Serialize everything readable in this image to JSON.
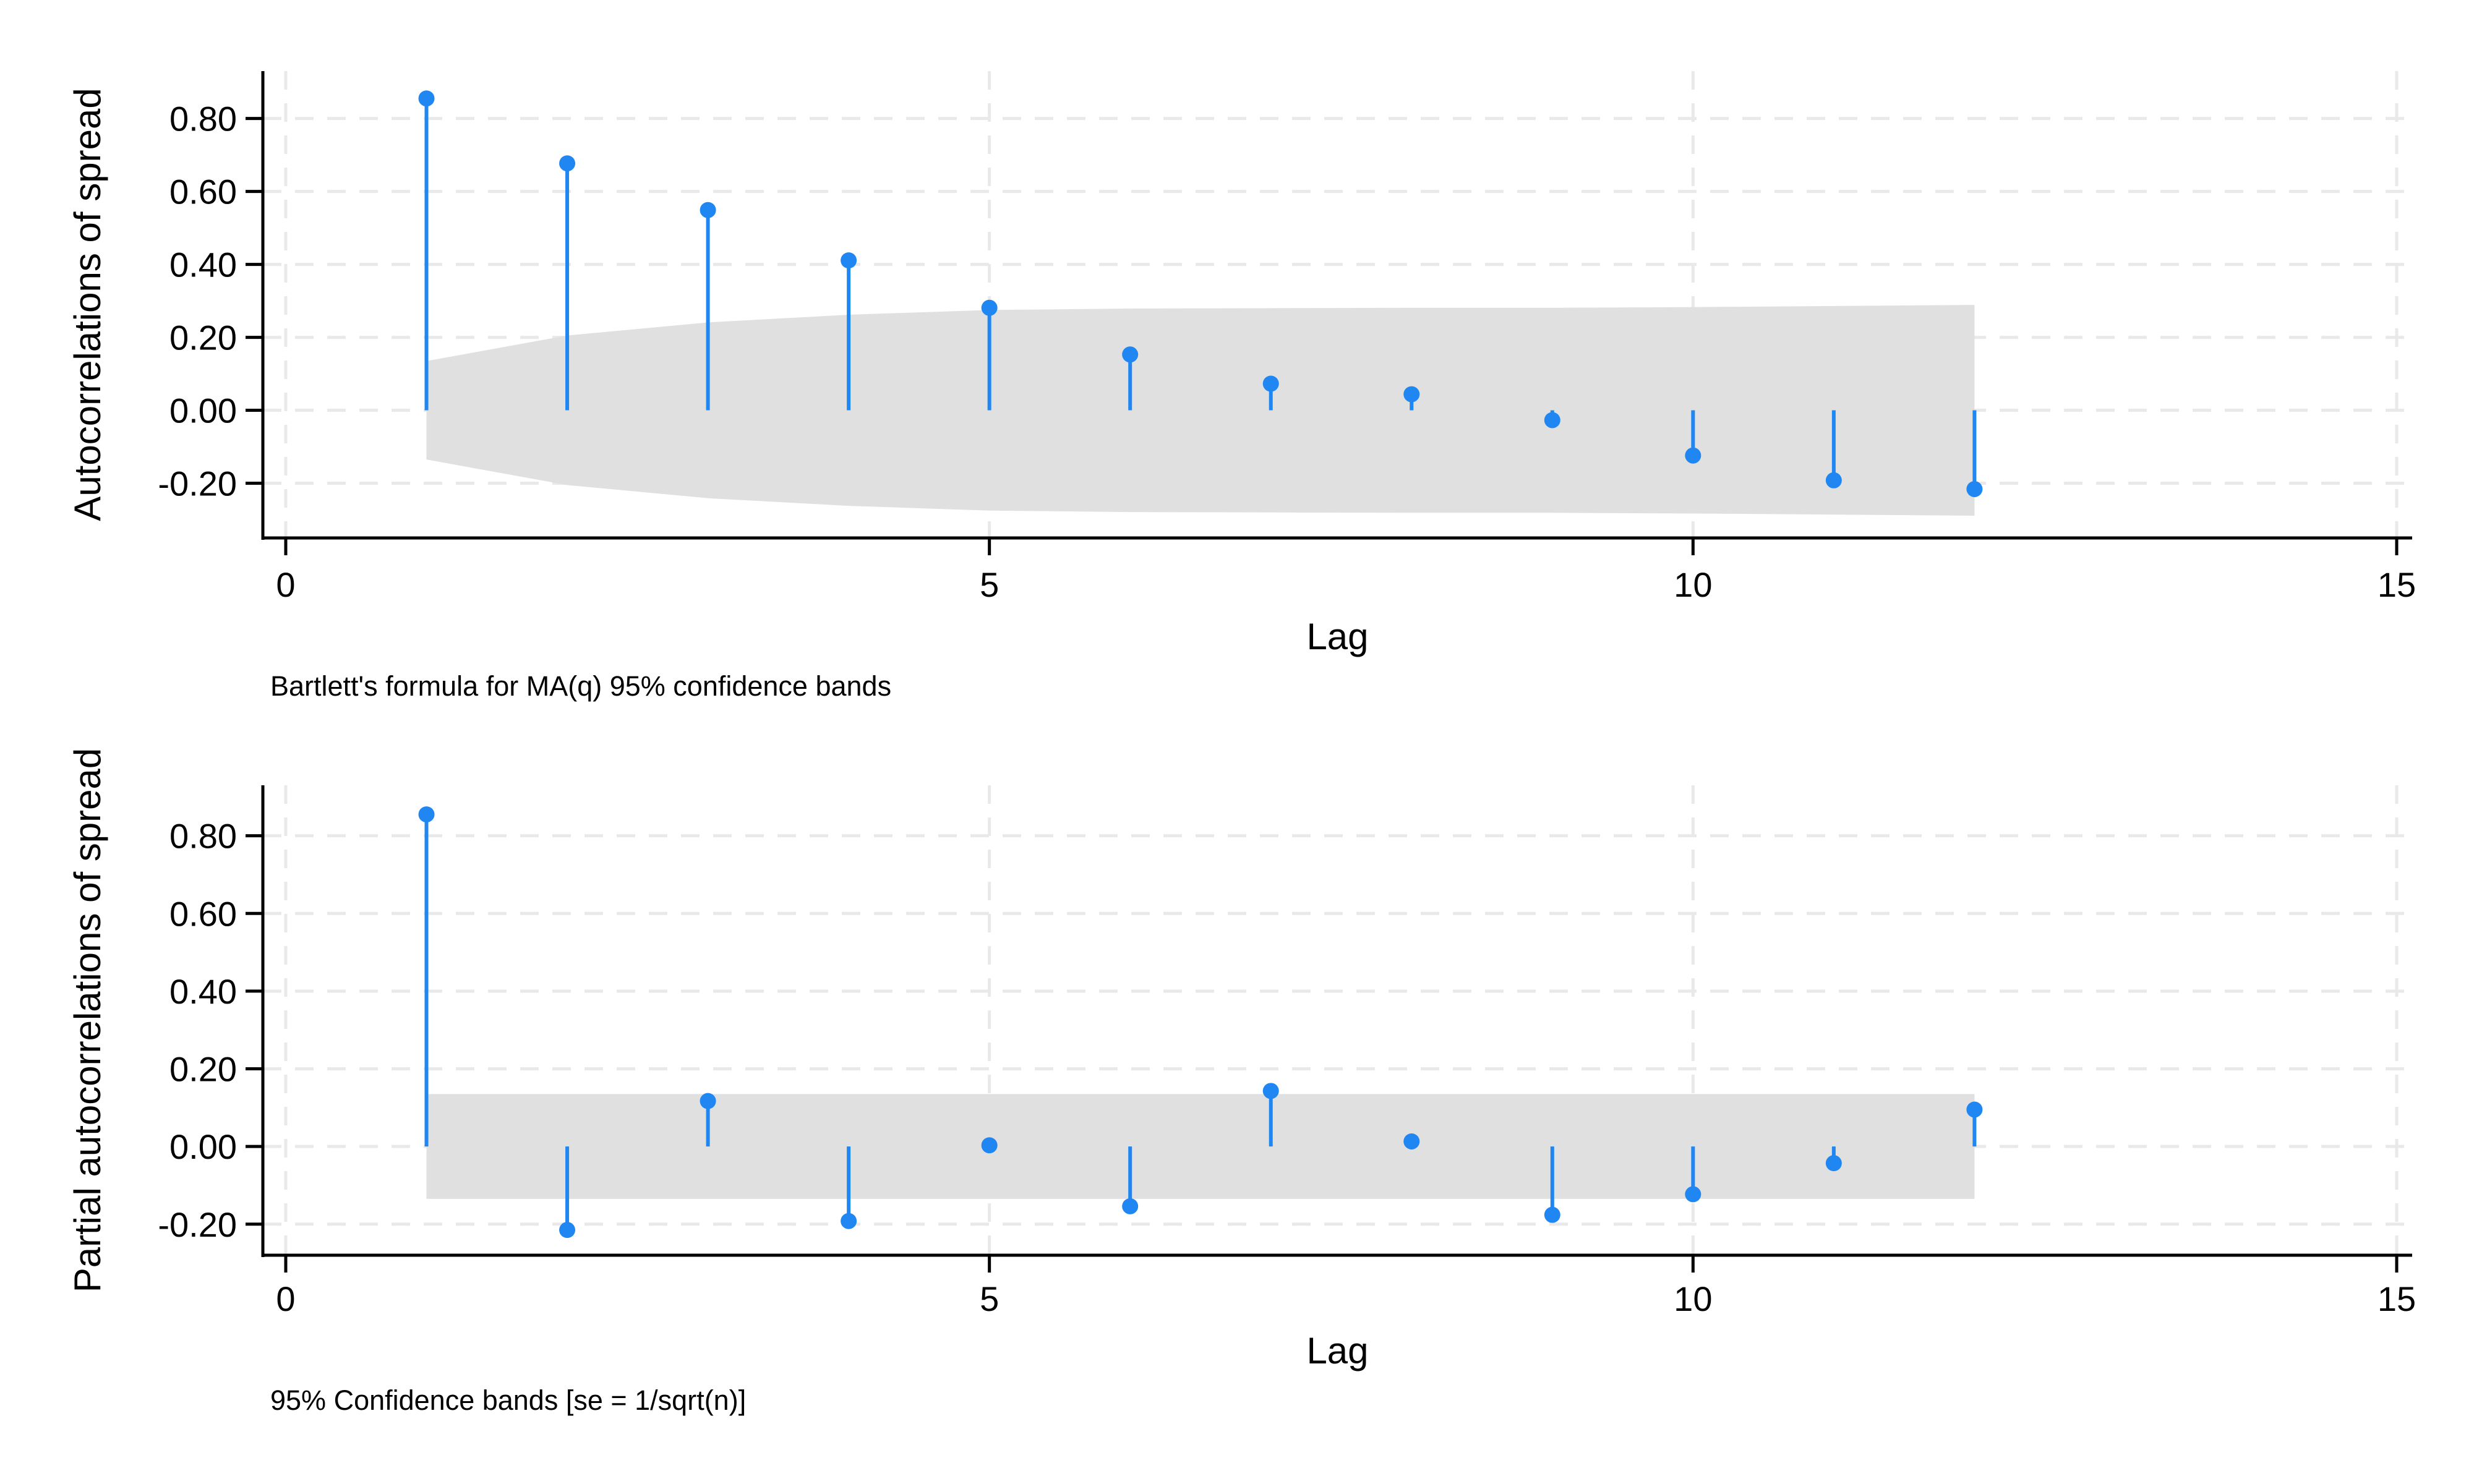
{
  "chart_data": [
    {
      "type": "stem",
      "ylabel": "Autocorrelations of spread",
      "xlabel": "Lag",
      "note": "Bartlett's formula for MA(q) 95% confidence bands",
      "xlim": [
        0,
        15
      ],
      "ylim": [
        -0.35,
        0.93
      ],
      "xticks": [
        0,
        5,
        10,
        15
      ],
      "xtick_labels": [
        "0",
        "5",
        "10",
        "15"
      ],
      "yticks": [
        -0.2,
        0.0,
        0.2,
        0.4,
        0.6,
        0.8
      ],
      "ytick_labels": [
        "-0.20",
        "0.00",
        "0.20",
        "0.40",
        "0.60",
        "0.80"
      ],
      "grid": true,
      "x": [
        1,
        2,
        3,
        4,
        5,
        6,
        7,
        8,
        9,
        10,
        11,
        12
      ],
      "values": [
        0.855,
        0.677,
        0.549,
        0.411,
        0.281,
        0.153,
        0.073,
        0.044,
        -0.027,
        -0.124,
        -0.192,
        -0.216
      ],
      "confidence_band": [
        0.135,
        0.205,
        0.241,
        0.262,
        0.275,
        0.279,
        0.28,
        0.281,
        0.281,
        0.283,
        0.286,
        0.289
      ],
      "colors": {
        "series": "#1f86f2",
        "band": "#e0e0e0",
        "grid": "#e9e9e9"
      }
    },
    {
      "type": "stem",
      "ylabel": "Partial autocorrelations of spread",
      "xlabel": "Lag",
      "note": "95% Confidence bands [se = 1/sqrt(n)]",
      "xlim": [
        0,
        15
      ],
      "ylim": [
        -0.28,
        0.93
      ],
      "xticks": [
        0,
        5,
        10,
        15
      ],
      "xtick_labels": [
        "0",
        "5",
        "10",
        "15"
      ],
      "yticks": [
        -0.2,
        0.0,
        0.2,
        0.4,
        0.6,
        0.8
      ],
      "ytick_labels": [
        "-0.20",
        "0.00",
        "0.20",
        "0.40",
        "0.60",
        "0.80"
      ],
      "grid": true,
      "x": [
        1,
        2,
        3,
        4,
        5,
        6,
        7,
        8,
        9,
        10,
        11,
        12
      ],
      "values": [
        0.855,
        -0.215,
        0.117,
        -0.192,
        0.003,
        -0.154,
        0.143,
        0.013,
        -0.176,
        -0.123,
        -0.043,
        0.095
      ],
      "confidence_band": [
        0.135,
        0.135,
        0.135,
        0.135,
        0.135,
        0.135,
        0.135,
        0.135,
        0.135,
        0.135,
        0.135,
        0.135
      ],
      "colors": {
        "series": "#1f86f2",
        "band": "#e0e0e0",
        "grid": "#e9e9e9"
      }
    }
  ]
}
